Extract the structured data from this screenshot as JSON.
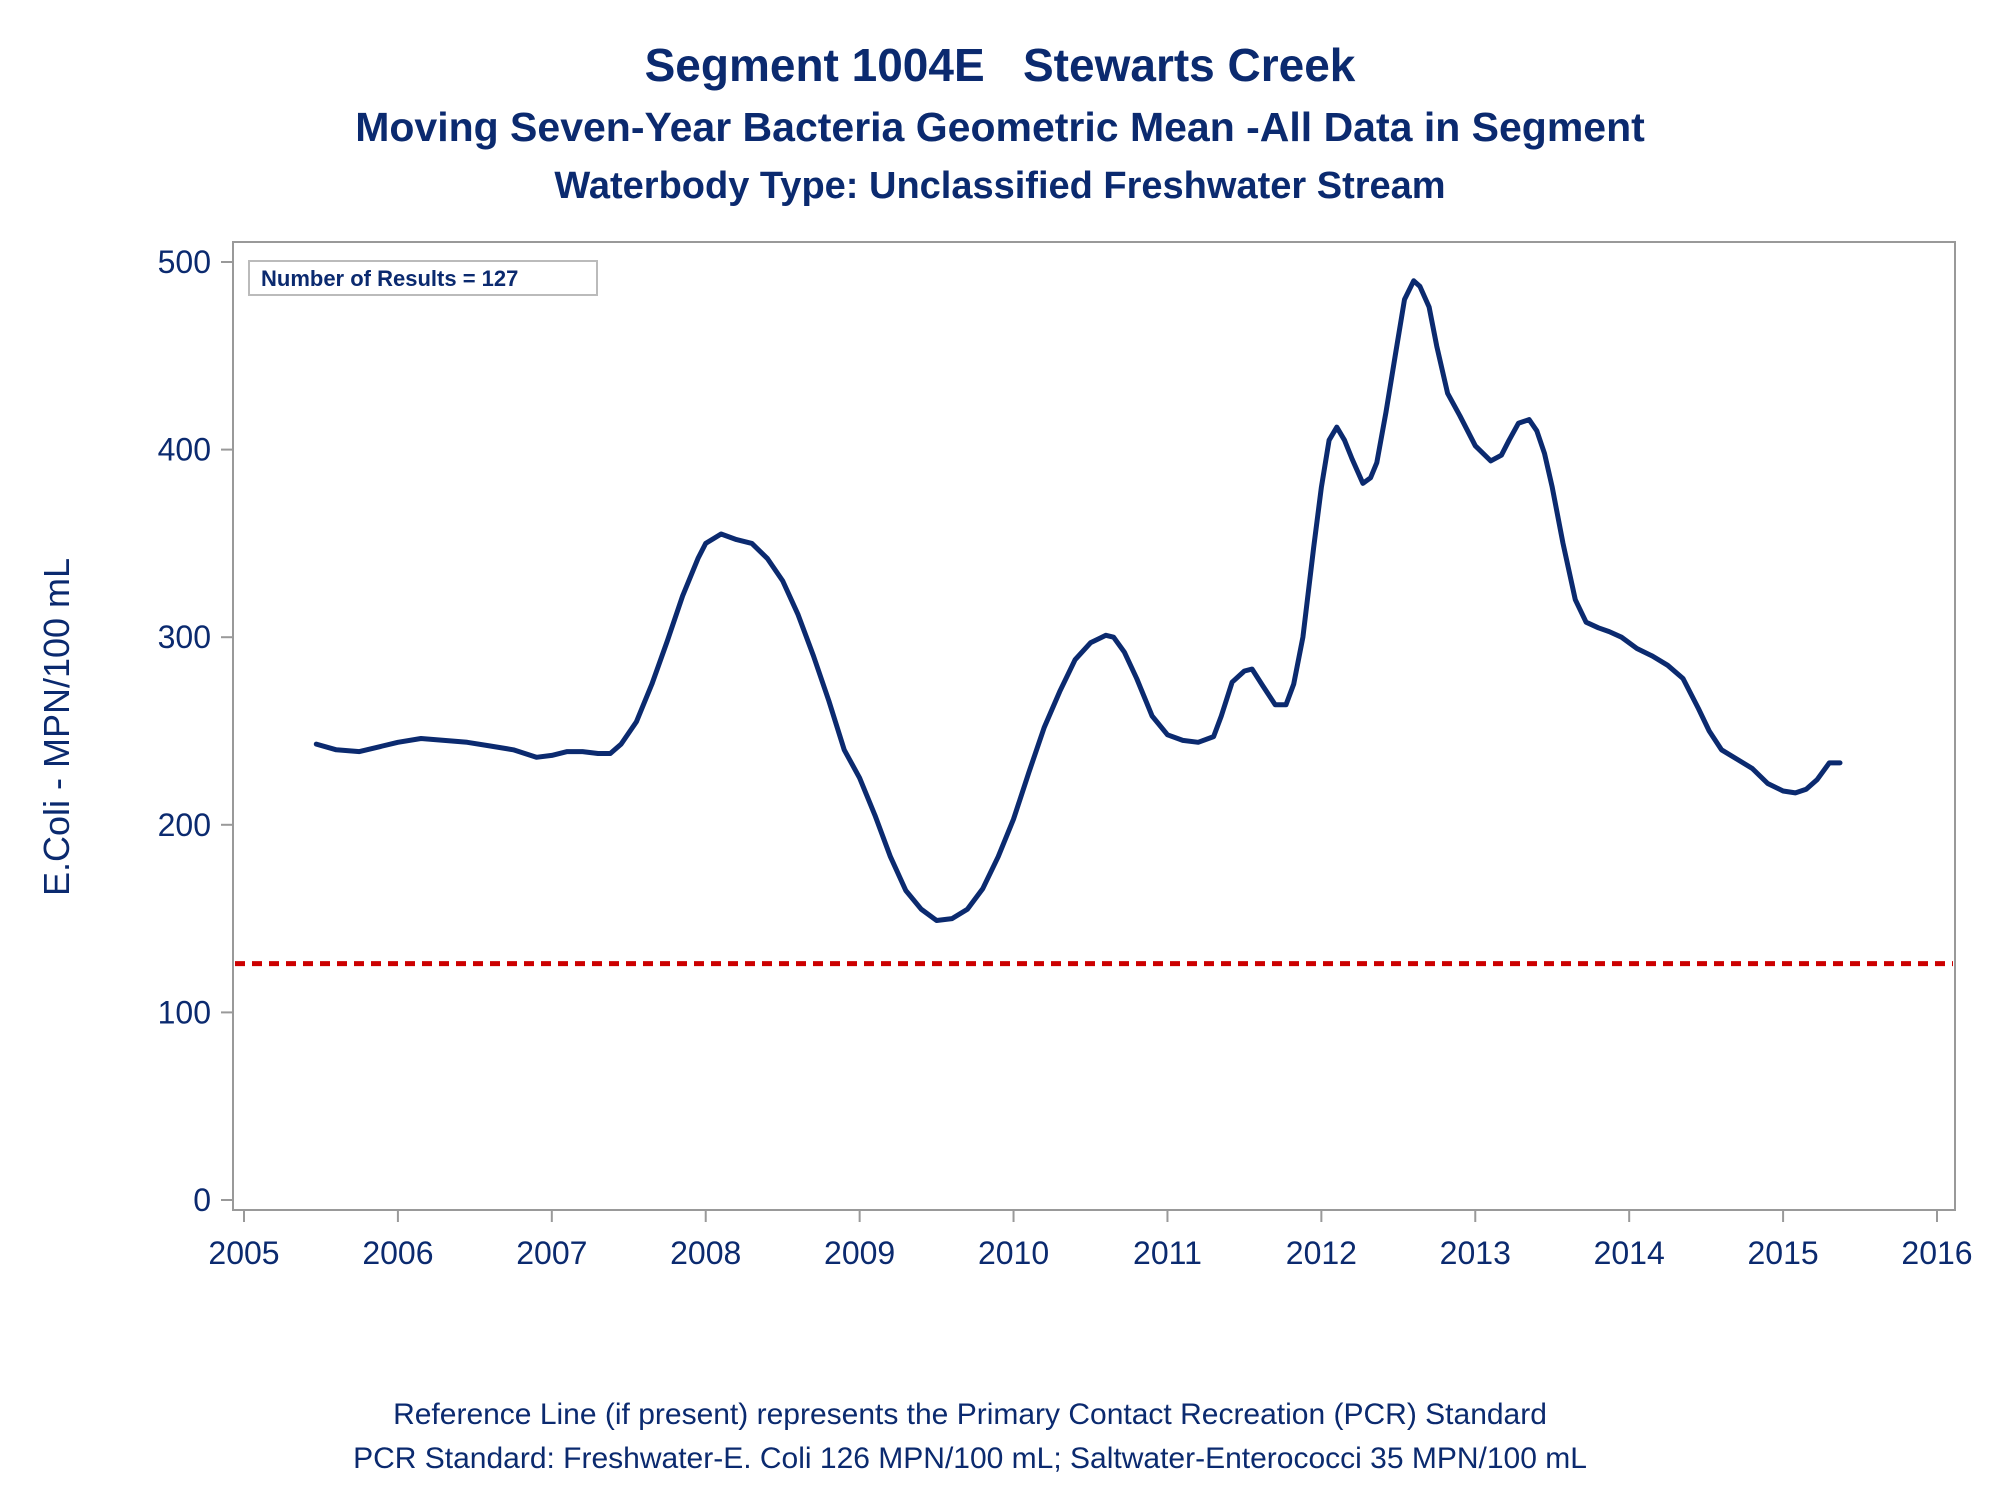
{
  "titles": {
    "line1": "Segment 1004E   Stewarts Creek",
    "line2": "Moving Seven-Year Bacteria Geometric Mean -All Data in Segment",
    "line3": "Waterbody Type: Unclassified Freshwater Stream"
  },
  "footnotes": {
    "line1": "Reference Line (if present) represents the Primary Contact Recreation (PCR) Standard",
    "line2": "PCR Standard: Freshwater-E. Coli 126 MPN/100 mL; Saltwater-Enterococci 35 MPN/100 mL"
  },
  "colors": {
    "series": "#0b2a6f",
    "reference": "#cc0000",
    "axis": "#999999",
    "text": "#0b2a6f"
  },
  "chart_data": {
    "type": "line",
    "ylabel": "E.Coli - MPN/100 mL",
    "xlabel": "",
    "xlim": [
      2005,
      2016
    ],
    "ylim": [
      0,
      500
    ],
    "x_ticks": [
      2005,
      2006,
      2007,
      2008,
      2009,
      2010,
      2011,
      2012,
      2013,
      2014,
      2015,
      2016
    ],
    "y_ticks": [
      0,
      100,
      200,
      300,
      400,
      500
    ],
    "grid": false,
    "annotation": "Number of Results = 127",
    "reference_line": {
      "y": 126
    },
    "series": [
      {
        "x": [
          2005.47,
          2005.6,
          2005.75,
          2005.9,
          2006.0,
          2006.15,
          2006.3,
          2006.45,
          2006.6,
          2006.75,
          2006.9,
          2007.0,
          2007.1,
          2007.2,
          2007.3,
          2007.38,
          2007.45,
          2007.55,
          2007.65,
          2007.75,
          2007.85,
          2007.95,
          2008.0,
          2008.1,
          2008.2,
          2008.3,
          2008.4,
          2008.5,
          2008.6,
          2008.7,
          2008.8,
          2008.9,
          2009.0,
          2009.1,
          2009.2,
          2009.3,
          2009.4,
          2009.5,
          2009.6,
          2009.7,
          2009.8,
          2009.9,
          2010.0,
          2010.1,
          2010.2,
          2010.3,
          2010.4,
          2010.5,
          2010.6,
          2010.65,
          2010.72,
          2010.8,
          2010.9,
          2011.0,
          2011.1,
          2011.2,
          2011.3,
          2011.35,
          2011.42,
          2011.5,
          2011.55,
          2011.62,
          2011.7,
          2011.77,
          2011.82,
          2011.88,
          2011.95,
          2012.0,
          2012.05,
          2012.1,
          2012.15,
          2012.2,
          2012.27,
          2012.32,
          2012.36,
          2012.42,
          2012.48,
          2012.54,
          2012.6,
          2012.64,
          2012.7,
          2012.75,
          2012.82,
          2012.9,
          2013.0,
          2013.1,
          2013.17,
          2013.22,
          2013.28,
          2013.35,
          2013.4,
          2013.45,
          2013.5,
          2013.57,
          2013.65,
          2013.72,
          2013.8,
          2013.87,
          2013.95,
          2014.05,
          2014.15,
          2014.25,
          2014.35,
          2014.45,
          2014.52,
          2014.6,
          2014.7,
          2014.8,
          2014.9,
          2015.0,
          2015.08,
          2015.15,
          2015.22,
          2015.3,
          2015.37
        ],
        "y": [
          243,
          240,
          239,
          242,
          244,
          246,
          245,
          244,
          242,
          240,
          236,
          237,
          239,
          239,
          238,
          238,
          243,
          255,
          275,
          298,
          322,
          342,
          350,
          355,
          352,
          350,
          342,
          330,
          312,
          290,
          266,
          240,
          225,
          205,
          183,
          165,
          155,
          149,
          150,
          155,
          166,
          183,
          203,
          228,
          252,
          271,
          288,
          297,
          301,
          300,
          292,
          278,
          258,
          248,
          245,
          244,
          247,
          258,
          276,
          282,
          283,
          274,
          264,
          264,
          275,
          300,
          348,
          380,
          405,
          412,
          405,
          395,
          382,
          385,
          393,
          420,
          450,
          480,
          490,
          487,
          476,
          455,
          430,
          418,
          402,
          394,
          397,
          405,
          414,
          416,
          410,
          398,
          380,
          350,
          320,
          308,
          305,
          303,
          300,
          294,
          290,
          285,
          278,
          262,
          250,
          240,
          235,
          230,
          222,
          218,
          217,
          219,
          224,
          233,
          233
        ]
      }
    ]
  }
}
